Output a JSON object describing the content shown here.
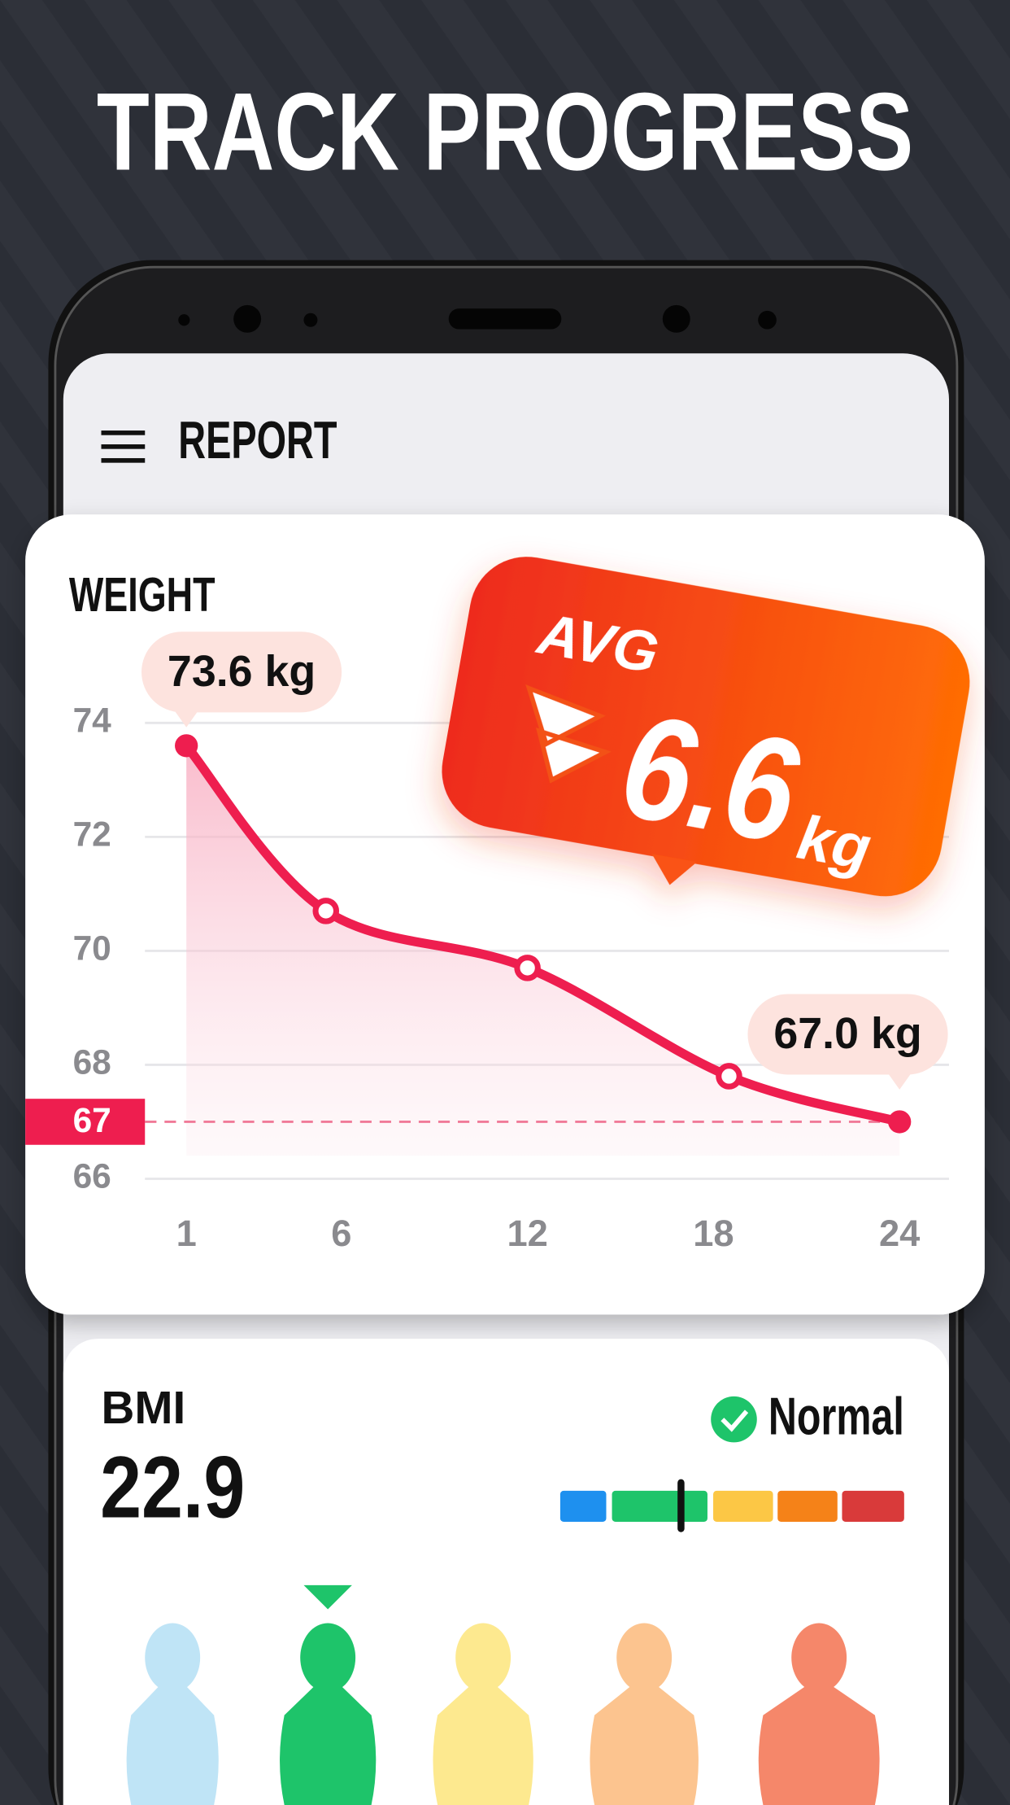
{
  "header": {
    "title": "TRACK PROGRESS"
  },
  "app_bar": {
    "title": "REPORT"
  },
  "chart_data": {
    "type": "line",
    "title": "WEIGHT",
    "x": [
      1,
      5.5,
      12,
      18.5,
      24
    ],
    "values": [
      73.6,
      70.7,
      69.7,
      67.8,
      67.0
    ],
    "value_labels": [
      "73.6 kg",
      null,
      null,
      null,
      "67.0 kg"
    ],
    "color": "#ee1e4f",
    "xlim": [
      1,
      24
    ],
    "xticks": [
      1,
      6,
      12,
      18,
      24
    ],
    "ylim": [
      66,
      74
    ],
    "yticks": [
      66,
      68,
      70,
      72,
      74
    ],
    "grid": true,
    "target": {
      "value": 67,
      "label": "67"
    }
  },
  "avg_badge": {
    "label": "AVG",
    "value": "6.6",
    "unit": "kg"
  },
  "bmi": {
    "label": "BMI",
    "value": "22.9",
    "status": "Normal"
  }
}
